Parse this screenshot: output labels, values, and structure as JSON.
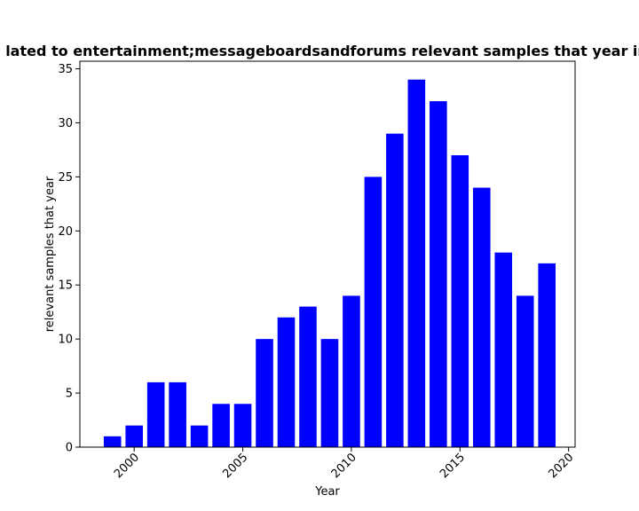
{
  "chart_data": {
    "type": "bar",
    "title": "lated to entertainment;messageboardsandforums relevant samples that year in",
    "xlabel": "Year",
    "ylabel": "relevant samples that year",
    "x": [
      1999,
      2000,
      2001,
      2002,
      2003,
      2004,
      2005,
      2006,
      2007,
      2008,
      2009,
      2010,
      2011,
      2012,
      2013,
      2014,
      2015,
      2016,
      2017,
      2018,
      2019
    ],
    "values": [
      1,
      2,
      6,
      6,
      2,
      4,
      4,
      10,
      12,
      13,
      10,
      14,
      25,
      29,
      34,
      32,
      27,
      24,
      18,
      14,
      17
    ],
    "xlim": [
      1997.5,
      2020.3
    ],
    "ylim": [
      0,
      35.7
    ],
    "xticks": [
      2000,
      2005,
      2010,
      2015,
      2020
    ],
    "xtick_labels": [
      "2000",
      "2005",
      "2010",
      "2015",
      "2020"
    ],
    "yticks": [
      0,
      5,
      10,
      15,
      20,
      25,
      30,
      35
    ],
    "ytick_labels": [
      "0",
      "5",
      "10",
      "15",
      "20",
      "25",
      "30",
      "35"
    ],
    "bar_color": "#0000ff",
    "grid": false,
    "legend": "none"
  }
}
